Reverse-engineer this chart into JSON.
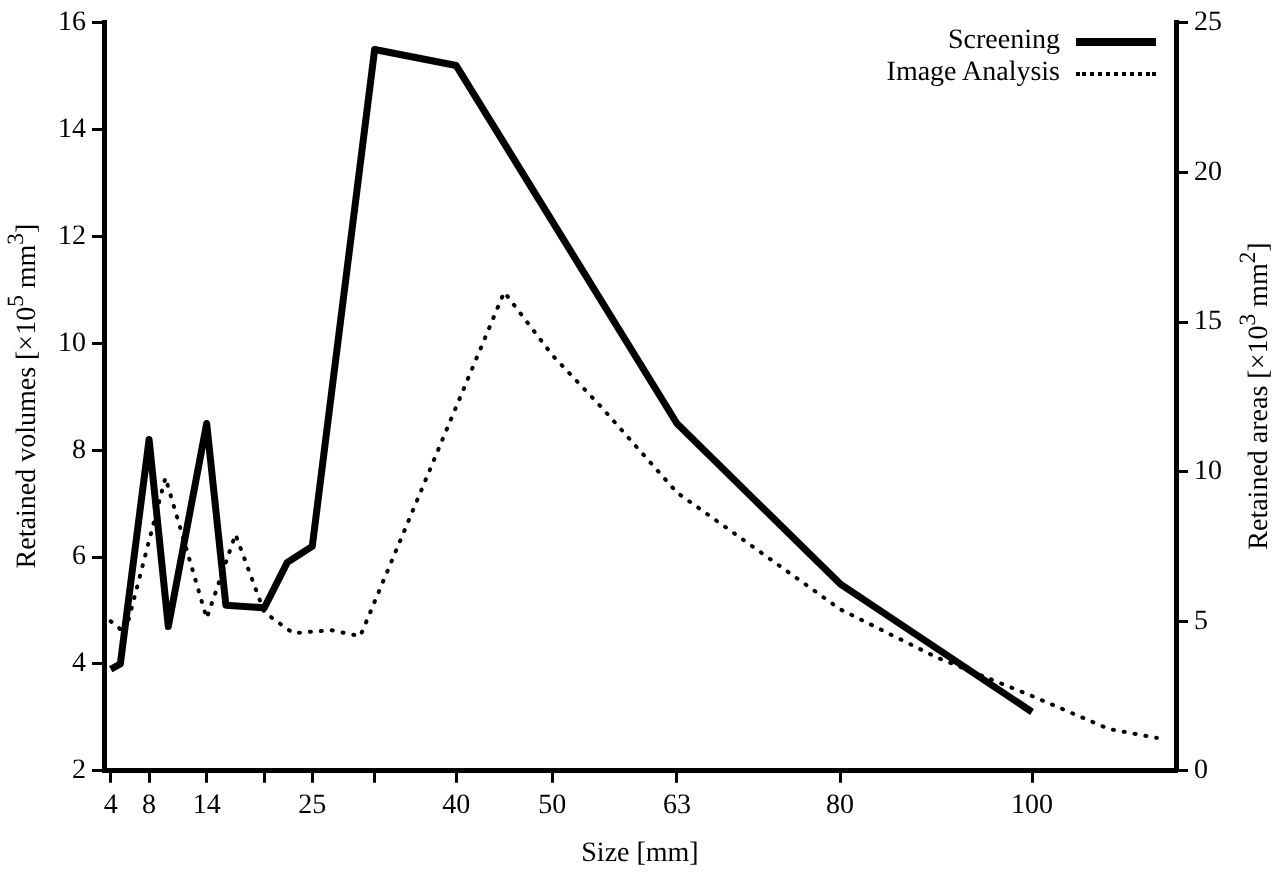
{
  "chart_data": {
    "type": "line",
    "xlabel": "Size [mm]",
    "ylabel": "Retained volumes [×10$^{5}$ mm$^{3}$]",
    "y2label": "Retained areas [×10$^{3}$ mm$^{2}$]",
    "xlim": [
      3.3,
      115
    ],
    "xticks": [
      4,
      8,
      14,
      {
        "value": 20,
        "label": null
      },
      25,
      {
        "value": 31.5,
        "label": null
      },
      40,
      50,
      63,
      80,
      100
    ],
    "ylim": [
      2,
      16
    ],
    "yticks": [
      2,
      4,
      6,
      8,
      10,
      12,
      14,
      16
    ],
    "y2lim": [
      0,
      25
    ],
    "y2ticks": [
      0,
      5,
      10,
      15,
      20,
      25
    ],
    "grid": false,
    "legend": "top right",
    "marker": "none",
    "series": [
      {
        "name": "Screening",
        "color": "#000000",
        "line_style": "solid",
        "x": [
          4,
          5,
          8,
          10,
          14,
          16,
          20,
          22.4,
          25,
          31.5,
          40,
          63,
          80,
          100
        ],
        "values": [
          3.9,
          4.0,
          8.2,
          4.7,
          8.5,
          5.1,
          5.05,
          5.9,
          6.2,
          15.5,
          15.2,
          8.5,
          5.5,
          3.1
        ]
      },
      {
        "name": "Image Analysis",
        "color": "#000000",
        "line_style": "dotted",
        "axis": "y2",
        "x": [
          4,
          5.5,
          9.7,
          14,
          17,
          20,
          23,
          27,
          30,
          45,
          50,
          55,
          63,
          70,
          80,
          90,
          100,
          108,
          113
        ],
        "values": [
          5.0,
          4.6,
          9.8,
          5.1,
          7.9,
          5.3,
          4.6,
          4.7,
          4.5,
          16.0,
          13.9,
          12.2,
          9.3,
          7.7,
          5.4,
          3.8,
          2.5,
          1.4,
          1.1
        ]
      }
    ]
  }
}
